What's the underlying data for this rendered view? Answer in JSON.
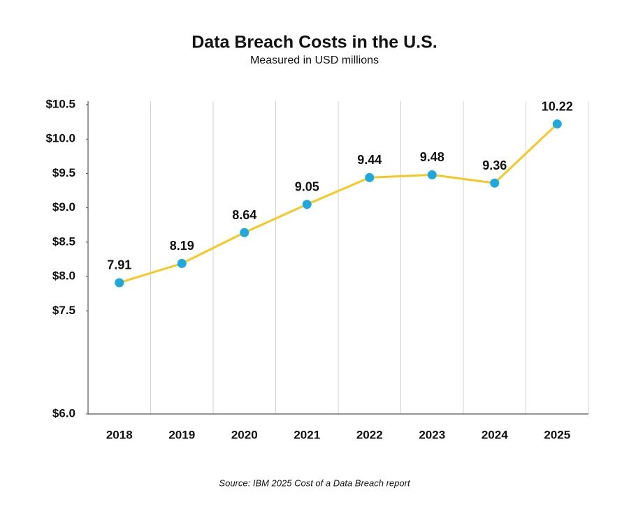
{
  "chart_data": {
    "type": "line",
    "title": "Data Breach Costs in the U.S.",
    "subtitle": "Measured in USD millions",
    "source": "Source: IBM 2025 Cost of a Data Breach report",
    "categories": [
      "2018",
      "2019",
      "2020",
      "2021",
      "2022",
      "2023",
      "2024",
      "2025"
    ],
    "values": [
      7.91,
      8.19,
      8.64,
      9.05,
      9.44,
      9.48,
      9.36,
      10.22
    ],
    "color": "#f5c823",
    "marker_color": "#1ea9de",
    "ylim": [
      6,
      10.5
    ],
    "yticks": [
      {
        "value": 6,
        "label": "$6.0"
      },
      {
        "value": 7.5,
        "label": "$7.5"
      },
      {
        "value": 8,
        "label": "$8.0"
      },
      {
        "value": 8.5,
        "label": "$8.5"
      },
      {
        "value": 9,
        "label": "$9.0"
      },
      {
        "value": 9.5,
        "label": "$9.5"
      },
      {
        "value": 10,
        "label": "$10.0"
      },
      {
        "value": 10.5,
        "label": "$10.5"
      }
    ],
    "grid": true
  }
}
